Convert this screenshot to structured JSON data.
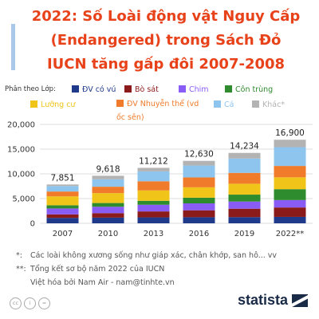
{
  "title_lines": [
    "2022: Số Loài động vật Nguy Cấp",
    "(Endangered) trong Sách Đỏ",
    "IUCN tăng gấp đôi 2007-2008"
  ],
  "legend_label": "Phân theo Lớp:",
  "notes": [
    {
      "mark": "*:",
      "text": "Các loài không xương sống như giáp xác, chân khớp, san hô... vv"
    },
    {
      "mark": "**:",
      "text": "Tổng kết sơ bộ năm 2022 của IUCN"
    },
    {
      "mark": "",
      "text": "Việt hóa bởi Nam Air - nam@tinhte.vn"
    }
  ],
  "footer": {
    "icons": [
      "cc-icon",
      "by-icon",
      "nd-icon"
    ],
    "icon_glyphs": [
      "cc",
      "i",
      "="
    ],
    "brand": "statista"
  },
  "colors": {
    "title": "#e8421a",
    "accent_bar": "#a9c8ea",
    "grid": "#dddddd"
  },
  "chart_data": {
    "type": "bar",
    "stacked": true,
    "categories": [
      "2007",
      "2010",
      "2013",
      "2016",
      "2019",
      "2022**"
    ],
    "totals": [
      7851,
      9618,
      11212,
      12630,
      14234,
      16900
    ],
    "totals_labels": [
      "7,851",
      "9,618",
      "11,212",
      "12,630",
      "14,234",
      "16,900"
    ],
    "ylim": [
      0,
      20000
    ],
    "yticks": [
      0,
      5000,
      10000,
      15000,
      20000
    ],
    "ytick_labels": [
      "0",
      "5,000",
      "10,000",
      "15,000",
      "20,000"
    ],
    "grid": true,
    "legend_position": "top",
    "series": [
      {
        "name": "ĐV có vú",
        "color": "#1f3a8a",
        "values": [
          1100,
          1150,
          1200,
          1230,
          1250,
          1300
        ]
      },
      {
        "name": "Bò sát",
        "color": "#8b1a1a",
        "values": [
          700,
          900,
          1200,
          1400,
          1700,
          1900
        ]
      },
      {
        "name": "Chim",
        "color": "#8a5cf6",
        "values": [
          1200,
          1300,
          1350,
          1400,
          1450,
          1500
        ]
      },
      {
        "name": "Côn trùng",
        "color": "#2e8b2e",
        "values": [
          650,
          750,
          800,
          1150,
          1400,
          2200
        ]
      },
      {
        "name": "Lưỡng cư",
        "color": "#f0c419",
        "values": [
          1800,
          2000,
          2100,
          2100,
          2200,
          2400
        ]
      },
      {
        "name": "ĐV Nhuyễn thể (vd ốc sên)",
        "color": "#f07b2a",
        "values": [
          980,
          1300,
          1850,
          2000,
          2200,
          2300
        ]
      },
      {
        "name": "Cá",
        "color": "#8ec5ef",
        "values": [
          1100,
          1500,
          2000,
          2400,
          2900,
          3800
        ]
      },
      {
        "name": "Khác*",
        "color": "#b3b3b3",
        "values": [
          321,
          718,
          712,
          950,
          1134,
          1500
        ]
      }
    ]
  }
}
